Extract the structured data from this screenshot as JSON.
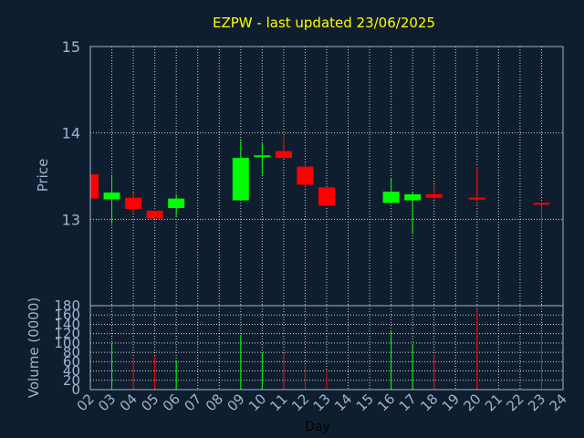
{
  "chart_data": {
    "type": "candlestick",
    "title": "EZPW - last updated 23/06/2025",
    "xlabel": "Day",
    "colors": {
      "background": "#0f1e2f",
      "title": "#ffff00",
      "up": "#00ff00",
      "down": "#ff0000",
      "grid": "#ffffff",
      "axis": "#9bb4cf",
      "xlabel": "#000000"
    },
    "days": [
      "02",
      "03",
      "04",
      "05",
      "06",
      "07",
      "08",
      "09",
      "10",
      "11",
      "12",
      "13",
      "14",
      "15",
      "16",
      "17",
      "18",
      "19",
      "20",
      "21",
      "22",
      "23",
      "24"
    ],
    "price_panel": {
      "ylabel": "Price",
      "ylim": [
        12.0,
        15.0
      ],
      "yticks": [
        13,
        14,
        15
      ],
      "grid": true
    },
    "volume_panel": {
      "ylabel": "Volume (0000)",
      "ylim": [
        0,
        180
      ],
      "yticks": [
        0,
        20,
        40,
        60,
        80,
        100,
        120,
        140,
        160,
        180
      ],
      "grid": true
    },
    "candles": [
      {
        "day": "02",
        "open": 13.52,
        "high": 13.52,
        "low": 13.24,
        "close": 13.24,
        "volume": 0
      },
      {
        "day": "03",
        "open": 13.23,
        "high": 13.5,
        "low": 12.95,
        "close": 13.31,
        "volume": 100
      },
      {
        "day": "04",
        "open": 13.25,
        "high": 13.31,
        "low": 13.08,
        "close": 13.12,
        "volume": 68
      },
      {
        "day": "05",
        "open": 13.1,
        "high": 13.1,
        "low": 13.01,
        "close": 13.01,
        "volume": 72
      },
      {
        "day": "06",
        "open": 13.13,
        "high": 13.28,
        "low": 13.04,
        "close": 13.24,
        "volume": 63
      },
      {
        "day": "09",
        "open": 13.22,
        "high": 13.93,
        "low": 13.22,
        "close": 13.71,
        "volume": 118
      },
      {
        "day": "10",
        "open": 13.73,
        "high": 13.88,
        "low": 13.52,
        "close": 13.74,
        "volume": 80
      },
      {
        "day": "11",
        "open": 13.79,
        "high": 13.97,
        "low": 13.71,
        "close": 13.71,
        "volume": 78
      },
      {
        "day": "12",
        "open": 13.61,
        "high": 13.65,
        "low": 13.36,
        "close": 13.4,
        "volume": 52
      },
      {
        "day": "13",
        "open": 13.37,
        "high": 13.37,
        "low": 13.15,
        "close": 13.16,
        "volume": 41
      },
      {
        "day": "16",
        "open": 13.19,
        "high": 13.47,
        "low": 13.19,
        "close": 13.32,
        "volume": 125
      },
      {
        "day": "17",
        "open": 13.22,
        "high": 13.31,
        "low": 12.83,
        "close": 13.29,
        "volume": 98
      },
      {
        "day": "18",
        "open": 13.29,
        "high": 13.4,
        "low": 13.23,
        "close": 13.25,
        "volume": 75
      },
      {
        "day": "20",
        "open": 13.25,
        "high": 13.61,
        "low": 13.21,
        "close": 13.24,
        "volume": 170
      },
      {
        "day": "23",
        "open": 13.19,
        "high": 13.19,
        "low": 12.89,
        "close": 13.17,
        "volume": 125
      }
    ]
  }
}
